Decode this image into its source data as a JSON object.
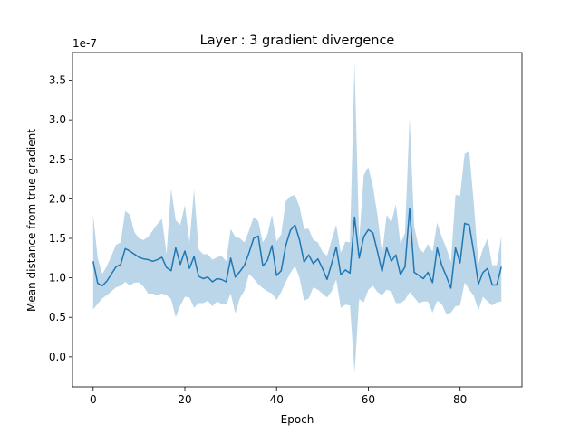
{
  "chart_data": {
    "type": "line",
    "title": "Layer : 3 gradient divergence",
    "xlabel": "Epoch",
    "ylabel": "Mean distance from true gradient",
    "offset_text": "1e-7",
    "xlim": [
      -4.5,
      93.5
    ],
    "ylim": [
      -0.38,
      3.85
    ],
    "x_ticks": [
      0,
      20,
      40,
      60,
      80
    ],
    "y_ticks": [
      0.0,
      0.5,
      1.0,
      1.5,
      2.0,
      2.5,
      3.0,
      3.5
    ],
    "y_tick_labels": [
      "0.0",
      "0.5",
      "1.0",
      "1.5",
      "2.0",
      "2.5",
      "3.0",
      "3.5"
    ],
    "grid": false,
    "colors": {
      "line": "#1f77b4",
      "band": "#1f77b4"
    },
    "series": [
      {
        "x": [
          0,
          1,
          2,
          3,
          4,
          5,
          6,
          7,
          8,
          9,
          10,
          11,
          12,
          13,
          14,
          15,
          16,
          17,
          18,
          19,
          20,
          21,
          22,
          23,
          24,
          25,
          26,
          27,
          28,
          29,
          30,
          31,
          32,
          33,
          34,
          35,
          36,
          37,
          38,
          39,
          40,
          41,
          42,
          43,
          44,
          45,
          46,
          47,
          48,
          49,
          50,
          51,
          52,
          53,
          54,
          55,
          56,
          57,
          58,
          59,
          60,
          61,
          62,
          63,
          64,
          65,
          66,
          67,
          68,
          69,
          70,
          71,
          72,
          73,
          74,
          75,
          76,
          77,
          78,
          79,
          80,
          81,
          82,
          83,
          84,
          85,
          86,
          87,
          88,
          89
        ],
        "mean": [
          1.21,
          0.93,
          0.9,
          0.96,
          1.05,
          1.14,
          1.17,
          1.37,
          1.34,
          1.3,
          1.26,
          1.24,
          1.23,
          1.21,
          1.23,
          1.26,
          1.13,
          1.09,
          1.38,
          1.17,
          1.34,
          1.12,
          1.27,
          1.02,
          0.99,
          1.01,
          0.95,
          0.99,
          0.98,
          0.95,
          1.25,
          1.01,
          1.08,
          1.16,
          1.32,
          1.5,
          1.53,
          1.15,
          1.22,
          1.41,
          1.03,
          1.09,
          1.41,
          1.6,
          1.67,
          1.48,
          1.2,
          1.29,
          1.18,
          1.24,
          1.12,
          0.98,
          1.18,
          1.39,
          1.04,
          1.1,
          1.06,
          1.77,
          1.25,
          1.52,
          1.61,
          1.57,
          1.33,
          1.08,
          1.38,
          1.21,
          1.29,
          1.04,
          1.14,
          1.88,
          1.07,
          1.03,
          0.99,
          1.07,
          0.94,
          1.38,
          1.16,
          1.02,
          0.87,
          1.38,
          1.19,
          1.69,
          1.67,
          1.32,
          0.92,
          1.07,
          1.12,
          0.91,
          0.91,
          1.14
        ],
        "upper": [
          1.8,
          1.25,
          1.05,
          1.15,
          1.28,
          1.42,
          1.45,
          1.85,
          1.8,
          1.58,
          1.5,
          1.48,
          1.52,
          1.6,
          1.68,
          1.75,
          1.3,
          2.13,
          1.73,
          1.67,
          1.92,
          1.45,
          2.12,
          1.36,
          1.3,
          1.3,
          1.23,
          1.26,
          1.28,
          1.21,
          1.62,
          1.52,
          1.5,
          1.45,
          1.6,
          1.77,
          1.72,
          1.45,
          1.55,
          1.8,
          1.46,
          1.55,
          1.97,
          2.03,
          2.05,
          1.9,
          1.62,
          1.62,
          1.48,
          1.45,
          1.33,
          1.28,
          1.48,
          1.67,
          1.32,
          1.46,
          1.45,
          3.72,
          1.48,
          2.3,
          2.4,
          2.16,
          1.79,
          1.3,
          1.8,
          1.7,
          1.93,
          1.43,
          1.57,
          3.03,
          1.65,
          1.38,
          1.32,
          1.43,
          1.33,
          1.7,
          1.52,
          1.38,
          1.2,
          2.05,
          2.04,
          2.57,
          2.6,
          1.94,
          1.18,
          1.37,
          1.5,
          1.16,
          1.16,
          1.53
        ],
        "lower": [
          0.6,
          0.67,
          0.74,
          0.78,
          0.83,
          0.88,
          0.9,
          0.95,
          0.9,
          0.94,
          0.94,
          0.89,
          0.8,
          0.8,
          0.78,
          0.8,
          0.78,
          0.73,
          0.5,
          0.65,
          0.76,
          0.75,
          0.62,
          0.68,
          0.68,
          0.71,
          0.64,
          0.7,
          0.67,
          0.66,
          0.8,
          0.55,
          0.74,
          0.84,
          1.05,
          0.99,
          0.92,
          0.87,
          0.83,
          0.8,
          0.72,
          0.82,
          0.95,
          1.06,
          1.15,
          1.0,
          0.71,
          0.74,
          0.88,
          0.85,
          0.8,
          0.75,
          0.83,
          0.98,
          0.62,
          0.66,
          0.65,
          -0.2,
          0.73,
          0.69,
          0.85,
          0.9,
          0.82,
          0.78,
          0.85,
          0.83,
          0.68,
          0.68,
          0.72,
          0.82,
          0.75,
          0.68,
          0.7,
          0.7,
          0.56,
          0.71,
          0.67,
          0.54,
          0.56,
          0.64,
          0.65,
          0.94,
          0.85,
          0.77,
          0.59,
          0.76,
          0.7,
          0.65,
          0.69,
          0.7
        ]
      }
    ]
  }
}
